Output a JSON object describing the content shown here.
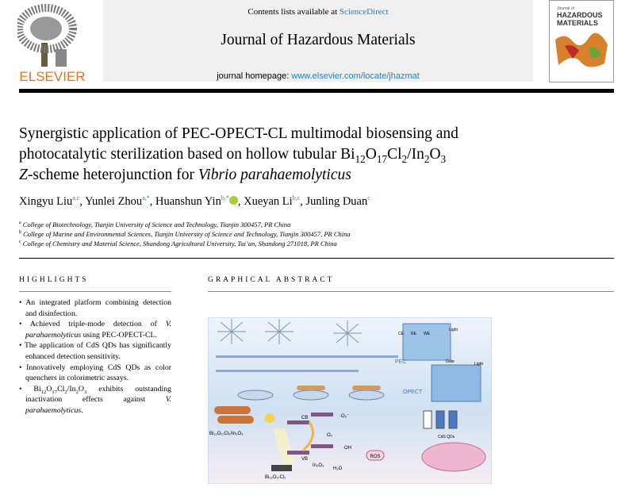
{
  "header": {
    "contents_prefix": "Contents lists available at",
    "contents_link": "ScienceDirect",
    "journal": "Journal of Hazardous Materials",
    "homepage_prefix": "journal homepage:",
    "homepage_link": "www.elsevier.com/locate/jhazmat",
    "publisher": "ELSEVIER",
    "cover_small": "Journal of",
    "cover_title_1": "HAZARDOUS",
    "cover_title_2": "MATERIALS"
  },
  "title": [
    "Synergistic application of PEC-OPECT-CL multimodal biosensing and",
    "photocatalytic sterilization based on hollow tubular Bi",
    "12",
    "O",
    "17",
    "Cl",
    "2",
    "/In",
    "2",
    "O",
    "3",
    "Z",
    "-scheme heterojunction for ",
    "Vibrio parahaemolyticus"
  ],
  "authors": [
    {
      "name": "Xingyu Liu",
      "affil": "a,c"
    },
    {
      "name": "Yunlei Zhou",
      "affil": "a,*"
    },
    {
      "name": "Huanshun Yin",
      "affil": "b,*"
    },
    {
      "name": "Xueyan Li",
      "affil": "b,c"
    },
    {
      "name": "Junling Duan",
      "affil": "c"
    }
  ],
  "affiliations": [
    {
      "label": "a",
      "text": "College of Biotechnology, Tianjin University of Science and Technology, Tianjin 300457, PR China"
    },
    {
      "label": "b",
      "text": "College of Marine and Environmental Sciences, Tianjin University of Science and Technology, Tianjin 300457, PR China"
    },
    {
      "label": "c",
      "text": "College of Chemistry and Material Science, Shandong Agricultural University, Tai’an, Shandong 271018, PR China"
    }
  ],
  "highlights": {
    "heading": "HIGHLIGHTS",
    "items": [
      [
        "An integrated platform combining detection and disinfection."
      ],
      [
        "Achieved triple-mode detection of ",
        "V. parahaemolyticus",
        " using PEC-OPECT-CL."
      ],
      [
        "The application of CdS QDs has significantly enhanced detection sensitivity."
      ],
      [
        "Innovatively employing CdS QDs as color quenchers in colorimetric assays."
      ],
      [
        "Bi",
        "12",
        "O",
        "17",
        "Cl",
        "2",
        "/In",
        "2",
        "O",
        "3",
        " exhibits outstanding inactivation effects against ",
        "V. parahaemolyticus",
        "."
      ]
    ]
  },
  "graphical_abstract": {
    "heading": "GRAPHICAL ABSTRACT",
    "labels": {
      "composite": "Bi₁₂O₁₇Cl₂/In₂O₃",
      "cb": "CB",
      "vb": "VB",
      "in2o3": "In₂O₃",
      "bocl": "Bi₁₂O₁₇Cl₂",
      "ros": "ROS",
      "superoxide": "·O₂⁻",
      "oxygen": "O₂",
      "hydroxyl": "·OH",
      "water": "H₂O",
      "pec": "PEC",
      "opect": "OPECT",
      "ce": "CE",
      "re": "RE",
      "we": "WE",
      "light": "Light",
      "gate": "Gate",
      "cds": "CdS QDs"
    }
  }
}
